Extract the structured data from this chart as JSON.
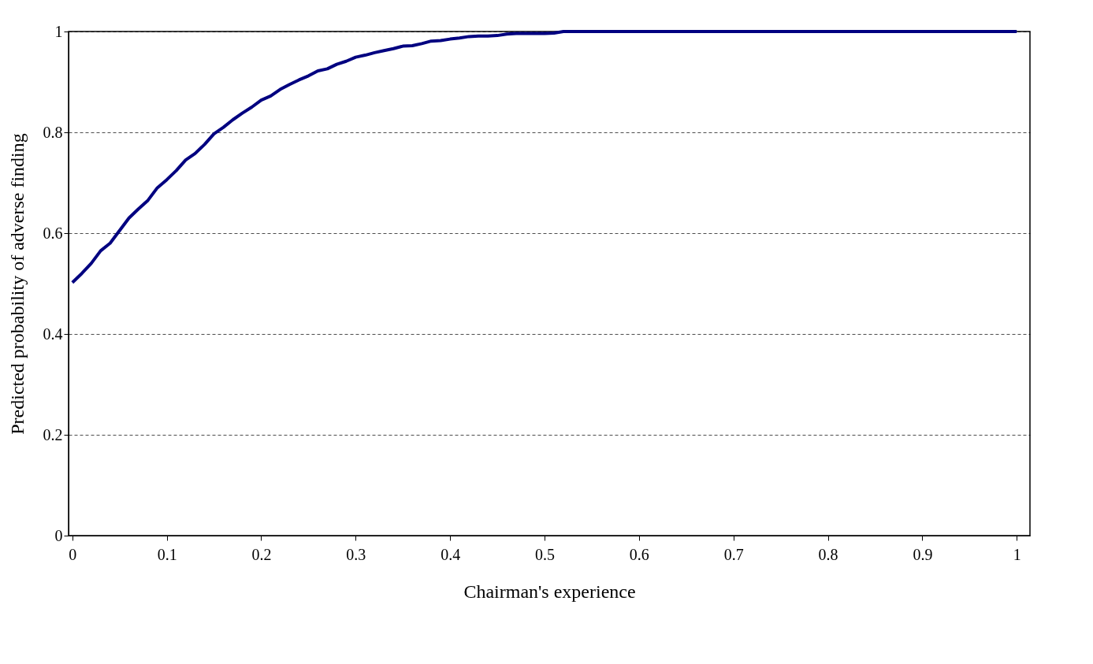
{
  "chart_data": {
    "type": "line",
    "xlabel": "Chairman's experience",
    "ylabel": "Predicted probability of adverse finding",
    "x": [
      0,
      0.01,
      0.02,
      0.03,
      0.04,
      0.05,
      0.06,
      0.07,
      0.08,
      0.09,
      0.1,
      0.11,
      0.12,
      0.13,
      0.14,
      0.15,
      0.16,
      0.17,
      0.18,
      0.19,
      0.2,
      0.21,
      0.22,
      0.23,
      0.24,
      0.25,
      0.26,
      0.27,
      0.28,
      0.29,
      0.3,
      0.31,
      0.32,
      0.33,
      0.34,
      0.35,
      0.36,
      0.37,
      0.38,
      0.39,
      0.4,
      0.41,
      0.42,
      0.43,
      0.44,
      0.45,
      0.46,
      0.47,
      0.48,
      0.49,
      0.5,
      0.51,
      0.52,
      1.0
    ],
    "series": [
      {
        "color": "#000080",
        "values": [
          0.502,
          0.52,
          0.54,
          0.565,
          0.58,
          0.605,
          0.63,
          0.648,
          0.665,
          0.69,
          0.706,
          0.724,
          0.745,
          0.758,
          0.776,
          0.797,
          0.81,
          0.825,
          0.838,
          0.85,
          0.864,
          0.872,
          0.885,
          0.895,
          0.904,
          0.912,
          0.922,
          0.926,
          0.935,
          0.941,
          0.949,
          0.953,
          0.958,
          0.962,
          0.966,
          0.971,
          0.972,
          0.976,
          0.981,
          0.982,
          0.985,
          0.987,
          0.99,
          0.991,
          0.991,
          0.992,
          0.995,
          0.996,
          0.996,
          0.996,
          0.996,
          0.997,
          1.0,
          1.0
        ]
      }
    ],
    "xlim": [
      -0.004,
      1.014
    ],
    "xticks": [
      0,
      0.1,
      0.2,
      0.3,
      0.4,
      0.5,
      0.6,
      0.7,
      0.8,
      0.9,
      1
    ],
    "ylim": [
      0,
      1.0
    ],
    "yticks": [
      0,
      0.2,
      0.4,
      0.6,
      0.8,
      1
    ],
    "grid": "y",
    "line_style": "solid",
    "marker": "none",
    "legend": false
  }
}
